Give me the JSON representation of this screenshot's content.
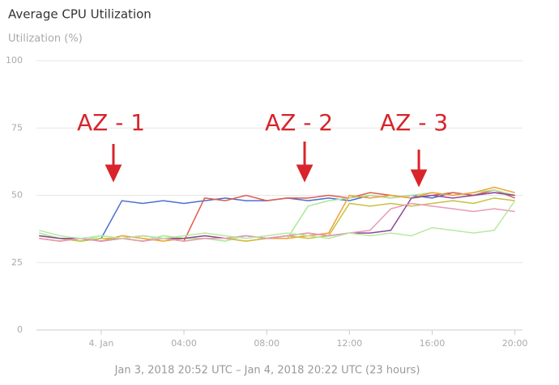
{
  "chart_data": {
    "type": "line",
    "title": "Average CPU Utilization",
    "y_label": "Utilization (%)",
    "footer": "Jan 3, 2018 20:52 UTC – Jan 4, 2018 20:22 UTC (23 hours)",
    "annotations": [
      "AZ - 1",
      "AZ - 2",
      "AZ - 3"
    ],
    "x": [
      -3,
      -2,
      -1,
      0,
      1,
      2,
      3,
      4,
      5,
      6,
      7,
      8,
      9,
      10,
      11,
      12,
      13,
      14,
      15,
      16,
      17,
      18,
      19,
      20
    ],
    "xlim": [
      -3.13,
      20.37
    ],
    "xticks": [
      {
        "value": 0,
        "label": "4. Jan"
      },
      {
        "value": 4,
        "label": "04:00"
      },
      {
        "value": 8,
        "label": "08:00"
      },
      {
        "value": 12,
        "label": "12:00"
      },
      {
        "value": 16,
        "label": "16:00"
      },
      {
        "value": 20,
        "label": "20:00"
      }
    ],
    "ylim": [
      0,
      100
    ],
    "yticks": [
      0,
      25,
      50,
      75,
      100
    ],
    "grid": true,
    "series": [
      {
        "color": "#4a6fd1",
        "values": [
          35,
          34,
          33,
          34,
          48,
          47,
          48,
          47,
          48,
          49,
          48,
          48,
          49,
          48,
          49,
          48,
          50,
          49,
          50,
          49,
          51,
          50,
          51,
          50
        ]
      },
      {
        "color": "#e05c4b",
        "values": [
          34,
          33,
          34,
          33,
          34,
          33,
          34,
          33,
          49,
          48,
          50,
          48,
          49,
          49,
          50,
          49,
          51,
          50,
          49,
          50,
          51,
          50,
          52,
          49
        ]
      },
      {
        "color": "#a8e89a",
        "values": [
          36,
          34,
          33,
          35,
          34,
          33,
          35,
          34,
          34,
          33,
          35,
          34,
          34,
          46,
          48,
          49,
          50,
          49,
          50,
          51,
          50,
          51,
          52,
          50
        ]
      },
      {
        "color": "#f0a030",
        "values": [
          34,
          33,
          34,
          33,
          35,
          34,
          33,
          34,
          35,
          34,
          33,
          34,
          34,
          35,
          36,
          50,
          49,
          50,
          49,
          51,
          50,
          51,
          53,
          51
        ]
      },
      {
        "color": "#c8c040",
        "values": [
          35,
          34,
          33,
          34,
          34,
          33,
          34,
          33,
          34,
          34,
          33,
          34,
          35,
          34,
          35,
          47,
          46,
          47,
          46,
          47,
          48,
          47,
          49,
          48
        ]
      },
      {
        "color": "#8a4a9a",
        "values": [
          35,
          34,
          34,
          33,
          34,
          35,
          34,
          34,
          35,
          34,
          35,
          34,
          35,
          36,
          35,
          36,
          36,
          37,
          49,
          50,
          49,
          50,
          51,
          50
        ]
      },
      {
        "color": "#e89ab8",
        "values": [
          34,
          33,
          34,
          33,
          34,
          33,
          34,
          33,
          34,
          34,
          35,
          34,
          35,
          36,
          35,
          36,
          37,
          45,
          47,
          46,
          45,
          44,
          45,
          44
        ]
      },
      {
        "color": "#b8e8a0",
        "values": [
          37,
          35,
          34,
          35,
          34,
          35,
          34,
          35,
          36,
          35,
          34,
          35,
          36,
          35,
          34,
          36,
          35,
          36,
          35,
          38,
          37,
          36,
          37,
          48
        ]
      }
    ]
  }
}
